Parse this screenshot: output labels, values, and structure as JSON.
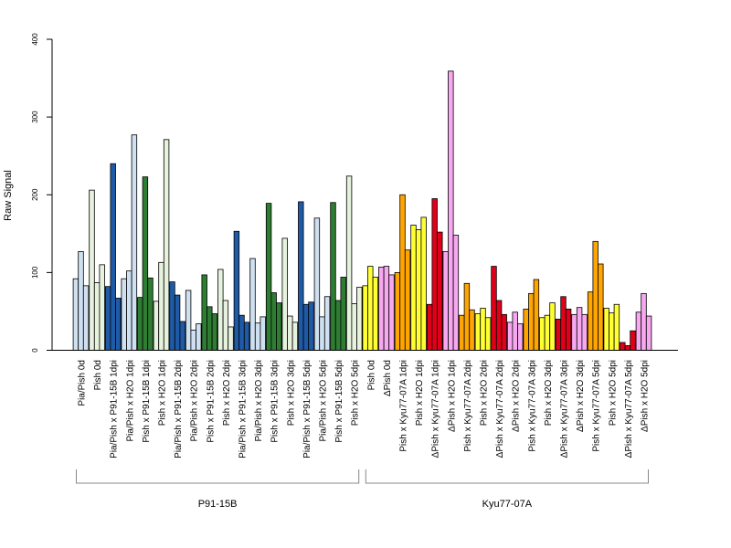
{
  "chart_data": {
    "type": "bar",
    "title": "",
    "xlabel": "",
    "ylabel": "Raw Signal",
    "ylim": [
      0,
      400
    ],
    "yticks": [
      0,
      100,
      200,
      300,
      400
    ],
    "grid": false,
    "legend": "none",
    "categories": [
      "Pia/Pish 0d",
      "Pish 0d",
      "Pia/Pish x P91-15B 1dpi",
      "Pia/Pish x H2O 1dpi",
      "Pish x P91-15B 1dpi",
      "Pish x H2O 1dpi",
      "Pia/Pish x P91-15B 2dpi",
      "Pia/Pish x H2O 2dpi",
      "Pish x P91-15B 2dpi",
      "Pish x H2O 2dpi",
      "Pia/Pish x P91-15B 3dpi",
      "Pia/Pish x H2O 3dpi",
      "Pish x P91-15B 3dpi",
      "Pish x H2O 3dpi",
      "Pia/Pish x P91-15B 5dpi",
      "Pia/Pish x H2O 5dpi",
      "Pish x P91-15B 5dpi",
      "Pish x H2O 5dpi",
      "Pish 0d",
      "ΔPish 0d",
      "Pish x Kyu77-07A 1dpi",
      "Pish x H2O 1dpi",
      "ΔPish x Kyu77-07A 1dpi",
      "ΔPish x H2O 1dpi",
      "Pish x Kyu77-07A 2dpi",
      "Pish x H2O 2dpi",
      "ΔPish x Kyu77-07A 2dpi",
      "ΔPish x H2O 2dpi",
      "Pish x Kyu77-07A 3dpi",
      "Pish x H2O 3dpi",
      "ΔPish x Kyu77-07A 3dpi",
      "ΔPish x H2O 3dpi",
      "Pish x Kyu77-07A 5dpi",
      "Pish x H2O 5dpi",
      "ΔPish x Kyu77-07A 5dpi",
      "ΔPish x H2O 5dpi"
    ],
    "values": [
      [
        92,
        127,
        83
      ],
      [
        206,
        87,
        110
      ],
      [
        82,
        240,
        67
      ],
      [
        92,
        102,
        277
      ],
      [
        68,
        223,
        93
      ],
      [
        63,
        113,
        271
      ],
      [
        88,
        71,
        37
      ],
      [
        77,
        26,
        34
      ],
      [
        97,
        56,
        47
      ],
      [
        104,
        64,
        30
      ],
      [
        153,
        45,
        36
      ],
      [
        118,
        35,
        43
      ],
      [
        189,
        74,
        61
      ],
      [
        144,
        44,
        36
      ],
      [
        191,
        59,
        62
      ],
      [
        170,
        43,
        69
      ],
      [
        190,
        64,
        94
      ],
      [
        224,
        60,
        81
      ]
    ],
    "values_kyu": [
      [
        83,
        108,
        94
      ],
      [
        107,
        108,
        97
      ],
      [
        100,
        200,
        129
      ],
      [
        161,
        155,
        171
      ],
      [
        59,
        195,
        152
      ],
      [
        127,
        359,
        148
      ],
      [
        45,
        86,
        52
      ],
      [
        47,
        54,
        42
      ],
      [
        108,
        64,
        46
      ],
      [
        36,
        49,
        34
      ],
      [
        53,
        73,
        91
      ],
      [
        42,
        45,
        61
      ],
      [
        40,
        69,
        53
      ],
      [
        46,
        55,
        46
      ],
      [
        75,
        140,
        111
      ],
      [
        54,
        48,
        59
      ],
      [
        10,
        6,
        25
      ],
      [
        49,
        73,
        44
      ]
    ],
    "bar_colors": [
      "#cfe0f1",
      "#e6f2dd",
      "#1f5aa6",
      "#cfe0f1",
      "#2e7d32",
      "#e6f2dd",
      "#1f5aa6",
      "#cfe0f1",
      "#2e7d32",
      "#e6f2dd",
      "#1f5aa6",
      "#cfe0f1",
      "#2e7d32",
      "#e6f2dd",
      "#1f5aa6",
      "#cfe0f1",
      "#2e7d32",
      "#e6f2dd",
      "#ffff33",
      "#f7a8f0",
      "#ffa500",
      "#ffff33",
      "#e0001a",
      "#f7a8f0",
      "#ffa500",
      "#ffff33",
      "#e0001a",
      "#f7a8f0",
      "#ffa500",
      "#ffff33",
      "#e0001a",
      "#f7a8f0",
      "#ffa500",
      "#ffff33",
      "#e0001a",
      "#f7a8f0"
    ],
    "groups": [
      {
        "label": "P91-15B",
        "first": 0,
        "last": 17
      },
      {
        "label": "Kyu77-07A",
        "first": 18,
        "last": 35
      }
    ]
  }
}
